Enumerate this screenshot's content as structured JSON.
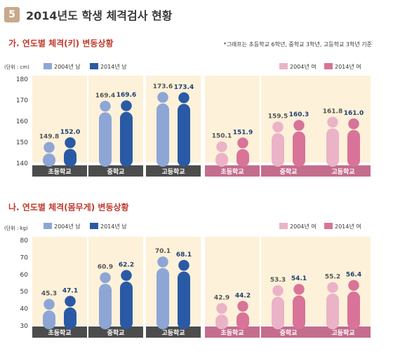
{
  "section_number": "5",
  "section_title": "2014년도 학생 체격검사 현황",
  "note": "*그래프는 초등학교 6학년, 중학교 3학년, 고등학교 3학년 기준",
  "colors": {
    "m2004": "#8ea6d6",
    "m2014": "#2a5aa5",
    "f2004": "#ebb3c7",
    "f2014": "#d97399",
    "panel_bg": "#fdf1d9",
    "male_label_bg": "#4c4c4c",
    "female_label_bg": "#c46d8c",
    "subtitle": "#c0392b"
  },
  "chart_data": [
    {
      "id": "height",
      "type": "bar",
      "subtitle": "가. 연도별 체격(키) 변동상황",
      "unit": "(단위 : cm)",
      "ylim": [
        140,
        180
      ],
      "yticks": [
        "180",
        "170",
        "160",
        "150",
        "140"
      ],
      "categories": [
        "초등학교",
        "중학교",
        "고등학교"
      ],
      "male_legend": [
        "2004년 남",
        "2014년 남"
      ],
      "female_legend": [
        "2004년 여",
        "2014년 여"
      ],
      "male": {
        "v2004": [
          149.8,
          169.4,
          173.6
        ],
        "v2014": [
          152.0,
          169.6,
          173.4
        ],
        "l2004": [
          "149.8",
          "169.4",
          "173.6"
        ],
        "l2014": [
          "152.0",
          "169.6",
          "173.4"
        ]
      },
      "female": {
        "v2004": [
          150.1,
          159.5,
          161.8
        ],
        "v2014": [
          151.9,
          160.3,
          161.0
        ],
        "l2004": [
          "150.1",
          "159.5",
          "161.8"
        ],
        "l2014": [
          "151.9",
          "160.3",
          "161.0"
        ]
      }
    },
    {
      "id": "weight",
      "type": "bar",
      "subtitle": "나. 연도별 체격(몸무게) 변동상황",
      "unit": "(단위 : kg)",
      "ylim": [
        30,
        80
      ],
      "yticks": [
        "80",
        "70",
        "60",
        "50",
        "40",
        "30"
      ],
      "categories": [
        "초등학교",
        "중학교",
        "고등학교"
      ],
      "male_legend": [
        "2004년 남",
        "2014년 남"
      ],
      "female_legend": [
        "2004년 여",
        "2014년 여"
      ],
      "male": {
        "v2004": [
          45.3,
          60.9,
          70.1
        ],
        "v2014": [
          47.1,
          62.2,
          68.1
        ],
        "l2004": [
          "45.3",
          "60.9",
          "70.1"
        ],
        "l2014": [
          "47.1",
          "62.2",
          "68.1"
        ]
      },
      "female": {
        "v2004": [
          42.9,
          53.3,
          55.2
        ],
        "v2014": [
          44.2,
          54.1,
          56.4
        ],
        "l2004": [
          "42.9",
          "53.3",
          "55.2"
        ],
        "l2014": [
          "44.2",
          "54.1",
          "56.4"
        ]
      }
    }
  ]
}
